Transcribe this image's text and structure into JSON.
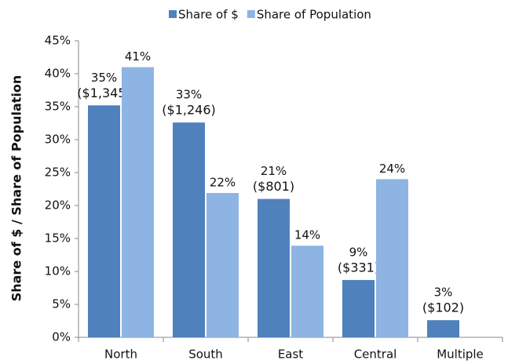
{
  "chart_data": {
    "type": "bar",
    "y_label": "Share of $ / Share of Population",
    "categories": [
      "North",
      "South",
      "East",
      "Central",
      "Multiple"
    ],
    "series": [
      {
        "name": "Share of $",
        "color": "#4f81bd",
        "values": [
          35.2,
          32.6,
          21,
          8.7,
          2.6
        ],
        "value_labels": [
          "35%",
          "33%",
          "21%",
          "9%",
          "3%"
        ],
        "amount_labels": [
          "($1,345)",
          "($1,246)",
          "($801)",
          "($331)",
          "($102)"
        ]
      },
      {
        "name": "Share of Population",
        "color": "#8eb4e3",
        "values": [
          41,
          21.9,
          13.9,
          24,
          null
        ],
        "value_labels": [
          "41%",
          "22%",
          "14%",
          "24%",
          null
        ]
      }
    ],
    "ylim": [
      0,
      45
    ],
    "yticks": [
      {
        "value": 0,
        "label": "0%"
      },
      {
        "value": 5,
        "label": "5%"
      },
      {
        "value": 10,
        "label": "10%"
      },
      {
        "value": 15,
        "label": "15%"
      },
      {
        "value": 20,
        "label": "20%"
      },
      {
        "value": 25,
        "label": "25%"
      },
      {
        "value": 30,
        "label": "30%"
      },
      {
        "value": 35,
        "label": "35%"
      },
      {
        "value": 40,
        "label": "40%"
      },
      {
        "value": 45,
        "label": "45%"
      }
    ],
    "legend": "top"
  }
}
